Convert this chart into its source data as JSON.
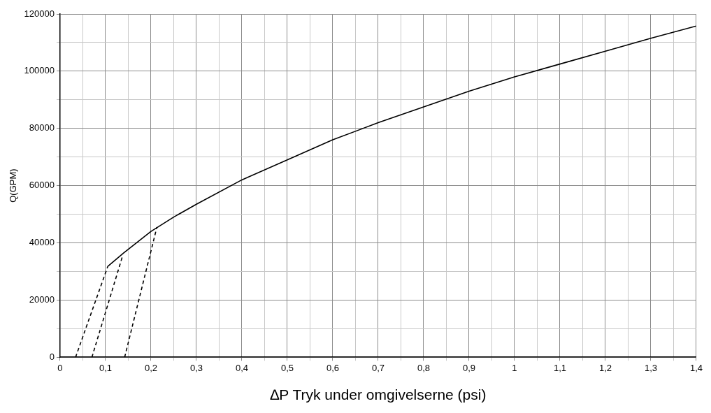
{
  "chart_data": {
    "type": "line",
    "xlabel": "∆P Tryk under omgivelserne (psi)",
    "ylabel": "Q(GPM)",
    "xlim": [
      0,
      1.4
    ],
    "ylim": [
      0,
      120000
    ],
    "xticks": [
      0,
      {
        "value": 0.05,
        "label": null
      },
      {
        "value": 0.1,
        "label": "0,1"
      },
      {
        "value": 0.15,
        "label": null
      },
      {
        "value": 0.2,
        "label": "0,2"
      },
      {
        "value": 0.25,
        "label": null
      },
      {
        "value": 0.3,
        "label": "0,3"
      },
      {
        "value": 0.35,
        "label": null
      },
      {
        "value": 0.4,
        "label": "0,4"
      },
      {
        "value": 0.45,
        "label": null
      },
      {
        "value": 0.5,
        "label": "0,5"
      },
      {
        "value": 0.55,
        "label": null
      },
      {
        "value": 0.6,
        "label": "0,6"
      },
      {
        "value": 0.65,
        "label": null
      },
      {
        "value": 0.7,
        "label": "0,7"
      },
      {
        "value": 0.75,
        "label": null
      },
      {
        "value": 0.8,
        "label": "0,8"
      },
      {
        "value": 0.85,
        "label": null
      },
      {
        "value": 0.9,
        "label": "0,9"
      },
      {
        "value": 0.95,
        "label": null
      },
      1,
      {
        "value": 1.05,
        "label": null
      },
      {
        "value": 1.1,
        "label": "1,1"
      },
      {
        "value": 1.15,
        "label": null
      },
      {
        "value": 1.2,
        "label": "1,2"
      },
      {
        "value": 1.25,
        "label": null
      },
      {
        "value": 1.3,
        "label": "1,3"
      },
      {
        "value": 1.35,
        "label": null
      },
      {
        "value": 1.4,
        "label": "1,4"
      }
    ],
    "yticks": [
      0,
      {
        "value": 10000,
        "label": null
      },
      20000,
      {
        "value": 30000,
        "label": null
      },
      40000,
      {
        "value": 50000,
        "label": null
      },
      60000,
      {
        "value": 70000,
        "label": null
      },
      80000,
      {
        "value": 90000,
        "label": null
      },
      100000,
      {
        "value": 110000,
        "label": null
      },
      120000
    ],
    "grid": true,
    "marker": "none",
    "series": [
      {
        "color": "#000000",
        "line_style": "solid",
        "x": [
          0.105,
          0.14,
          0.2,
          0.25,
          0.3,
          0.4,
          0.5,
          0.6,
          0.7,
          0.8,
          0.9,
          1.0,
          1.1,
          1.2,
          1.3,
          1.4
        ],
        "values": [
          31800,
          36500,
          44000,
          49000,
          53500,
          62000,
          69000,
          76000,
          82000,
          87500,
          93000,
          98000,
          102500,
          107000,
          111500,
          115800
        ]
      },
      {
        "color": "#000000",
        "line_style": "dashed",
        "x": [
          0.034,
          0.105
        ],
        "values": [
          0,
          31800
        ]
      },
      {
        "color": "#000000",
        "line_style": "dashed",
        "x": [
          0.07,
          0.138
        ],
        "values": [
          0,
          35700
        ]
      },
      {
        "color": "#000000",
        "line_style": "dashed",
        "x": [
          0.142,
          0.213
        ],
        "values": [
          0,
          45500
        ]
      }
    ]
  }
}
